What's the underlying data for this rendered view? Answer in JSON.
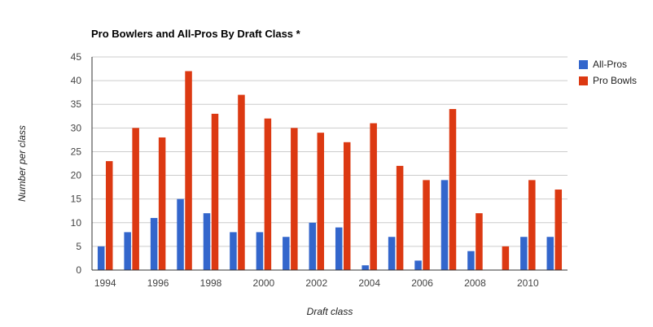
{
  "chart_data": {
    "type": "bar",
    "title": "Pro Bowlers and All-Pros By Draft Class *",
    "xlabel": "Draft class",
    "ylabel": "Number per class",
    "ylim": [
      0,
      45
    ],
    "yticks": [
      0,
      5,
      10,
      15,
      20,
      25,
      30,
      35,
      40,
      45
    ],
    "categories": [
      "1994",
      "1995",
      "1996",
      "1997",
      "1998",
      "1999",
      "2000",
      "2001",
      "2002",
      "2003",
      "2004",
      "2005",
      "2006",
      "2007",
      "2008",
      "2009",
      "2010",
      "2011"
    ],
    "x_tick_labels": [
      "1994",
      "1996",
      "1998",
      "2000",
      "2002",
      "2004",
      "2006",
      "2008",
      "2010"
    ],
    "grid": true,
    "legend_position": "right",
    "series": [
      {
        "name": "All-Pros",
        "color": "#3366cc",
        "values": [
          5,
          8,
          11,
          15,
          12,
          8,
          8,
          7,
          10,
          9,
          1,
          7,
          2,
          19,
          4,
          0,
          7,
          7
        ]
      },
      {
        "name": "Pro Bowls",
        "color": "#dc3912",
        "values": [
          23,
          30,
          28,
          42,
          33,
          37,
          32,
          30,
          29,
          27,
          31,
          22,
          19,
          34,
          12,
          5,
          19,
          17
        ]
      }
    ]
  }
}
